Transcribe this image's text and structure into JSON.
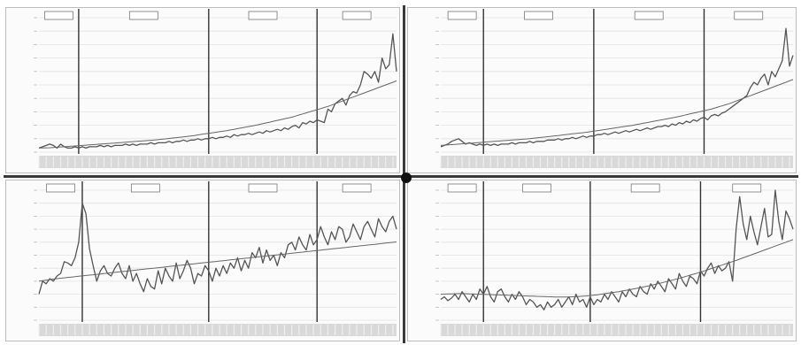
{
  "colors": {
    "frame": "#3a3a3a",
    "line": "#555555",
    "trend": "#666666",
    "grid": "#e2e2e2",
    "axis_band": "#d9d9d9"
  },
  "chart_data": [
    {
      "type": "line",
      "title": "",
      "xlabel": "",
      "ylabel": "",
      "x": [
        0,
        1,
        2,
        3,
        4,
        5,
        6,
        7,
        8,
        9,
        10,
        11,
        12,
        13,
        14,
        15,
        16,
        17,
        18,
        19,
        20,
        21,
        22,
        23,
        24,
        25,
        26,
        27,
        28,
        29,
        30,
        31,
        32,
        33,
        34,
        35,
        36,
        37,
        38,
        39,
        40,
        41,
        42,
        43,
        44,
        45,
        46,
        47,
        48,
        49,
        50,
        51,
        52,
        53,
        54,
        55,
        56,
        57,
        58,
        59,
        60,
        61,
        62,
        63,
        64,
        65,
        66,
        67,
        68,
        69,
        70,
        71,
        72,
        73,
        74,
        75,
        76,
        77,
        78,
        79,
        80,
        81,
        82,
        83,
        84,
        85,
        86,
        87,
        88,
        89,
        90,
        91,
        92,
        93,
        94,
        95,
        96,
        97,
        98,
        99
      ],
      "series": [
        {
          "values": [
            3,
            4,
            5,
            6,
            5,
            3,
            6,
            4,
            3,
            3,
            4,
            3,
            4,
            3,
            4,
            4,
            4,
            5,
            4,
            5,
            4,
            5,
            5,
            5,
            6,
            5,
            6,
            5,
            6,
            6,
            6,
            7,
            6,
            7,
            7,
            7,
            8,
            7,
            8,
            8,
            9,
            8,
            9,
            9,
            10,
            9,
            10,
            10,
            11,
            10,
            11,
            11,
            12,
            11,
            13,
            12,
            13,
            13,
            14,
            13,
            14,
            15,
            14,
            16,
            15,
            16,
            17,
            16,
            18,
            17,
            19,
            20,
            18,
            22,
            21,
            23,
            22,
            24,
            23,
            22,
            32,
            30,
            36,
            38,
            40,
            35,
            42,
            45,
            44,
            50,
            60,
            58,
            55,
            60,
            52,
            70,
            62,
            65,
            88,
            60
          ]
        },
        {
          "values": [
            3,
            3.1,
            3.2,
            3.3,
            3.5,
            3.7,
            3.9,
            4,
            4.2,
            4.4,
            4.6,
            4.8,
            5,
            5.2,
            5.4,
            5.6,
            5.8,
            6,
            6.2,
            6.4,
            6.6,
            6.8,
            7,
            7.2,
            7.4,
            7.6,
            7.8,
            8,
            8.2,
            8.4,
            8.6,
            8.8,
            9,
            9.3,
            9.6,
            9.9,
            10.2,
            10.5,
            10.8,
            11.1,
            11.4,
            11.7,
            12,
            12.4,
            12.8,
            13.2,
            13.6,
            14,
            14.4,
            14.8,
            15.2,
            15.6,
            16,
            16.5,
            17,
            17.5,
            18,
            18.5,
            19,
            19.5,
            20,
            20.6,
            21.2,
            21.8,
            22.4,
            23,
            23.6,
            24.2,
            24.8,
            25.4,
            26,
            26.8,
            27.6,
            28.4,
            29.2,
            30,
            30.8,
            31.6,
            32.4,
            33.2,
            34,
            35,
            36,
            37,
            38,
            39,
            40,
            41,
            42,
            43,
            44,
            45,
            46,
            47,
            48,
            49,
            50,
            51,
            52,
            53
          ]
        }
      ],
      "ylim": [
        0,
        100
      ],
      "vlines": [
        11,
        47,
        77
      ],
      "grid": true,
      "era_labels": [
        "",
        "",
        "",
        ""
      ]
    },
    {
      "type": "line",
      "title": "",
      "xlabel": "",
      "ylabel": "",
      "x": [
        0,
        1,
        2,
        3,
        4,
        5,
        6,
        7,
        8,
        9,
        10,
        11,
        12,
        13,
        14,
        15,
        16,
        17,
        18,
        19,
        20,
        21,
        22,
        23,
        24,
        25,
        26,
        27,
        28,
        29,
        30,
        31,
        32,
        33,
        34,
        35,
        36,
        37,
        38,
        39,
        40,
        41,
        42,
        43,
        44,
        45,
        46,
        47,
        48,
        49,
        50,
        51,
        52,
        53,
        54,
        55,
        56,
        57,
        58,
        59,
        60,
        61,
        62,
        63,
        64,
        65,
        66,
        67,
        68,
        69,
        70,
        71,
        72,
        73,
        74,
        75,
        76,
        77,
        78,
        79,
        80,
        81,
        82,
        83,
        84,
        85,
        86,
        87,
        88,
        89,
        90,
        91,
        92,
        93,
        94,
        95,
        96,
        97,
        98,
        99
      ],
      "series": [
        {
          "values": [
            4,
            5,
            6,
            8,
            9,
            10,
            8,
            6,
            7,
            6,
            5,
            6,
            5,
            6,
            5,
            6,
            5,
            6,
            6,
            6,
            7,
            6,
            7,
            7,
            7,
            8,
            7,
            8,
            8,
            8,
            9,
            9,
            9,
            10,
            9,
            10,
            10,
            11,
            10,
            11,
            12,
            11,
            12,
            12,
            13,
            13,
            14,
            13,
            14,
            15,
            14,
            15,
            16,
            15,
            16,
            17,
            16,
            17,
            18,
            17,
            18,
            19,
            19,
            20,
            19,
            21,
            20,
            22,
            21,
            23,
            22,
            24,
            23,
            25,
            26,
            24,
            27,
            28,
            27,
            29,
            30,
            32,
            34,
            36,
            38,
            40,
            42,
            48,
            52,
            50,
            55,
            58,
            50,
            60,
            56,
            62,
            68,
            92,
            64,
            72
          ]
        },
        {
          "values": [
            5,
            5.2,
            5.4,
            5.6,
            5.8,
            6,
            6.2,
            6.4,
            6.6,
            6.8,
            7,
            7.2,
            7.4,
            7.6,
            7.8,
            8,
            8.2,
            8.4,
            8.6,
            8.8,
            9,
            9.2,
            9.4,
            9.6,
            9.8,
            10,
            10.3,
            10.6,
            10.9,
            11.2,
            11.5,
            11.8,
            12.1,
            12.4,
            12.7,
            13,
            13.3,
            13.6,
            13.9,
            14.2,
            14.5,
            14.8,
            15.2,
            15.6,
            16,
            16.4,
            16.8,
            17.2,
            17.6,
            18,
            18.4,
            18.8,
            19.2,
            19.6,
            20,
            20.5,
            21,
            21.5,
            22,
            22.5,
            23,
            23.5,
            24,
            24.5,
            25,
            25.5,
            26,
            26.6,
            27.2,
            27.8,
            28.4,
            29,
            29.6,
            30.2,
            30.8,
            31.4,
            32,
            32.8,
            33.6,
            34.4,
            35.2,
            36,
            37,
            38,
            39,
            40,
            41,
            42,
            43,
            44,
            45,
            46,
            47,
            48,
            49,
            50,
            51,
            52,
            53,
            54
          ]
        }
      ],
      "ylim": [
        0,
        100
      ],
      "vlines": [
        12,
        43,
        74
      ],
      "grid": true,
      "era_labels": [
        "",
        "",
        "",
        ""
      ]
    },
    {
      "type": "line",
      "title": "",
      "xlabel": "",
      "ylabel": "",
      "x": [
        0,
        1,
        2,
        3,
        4,
        5,
        6,
        7,
        8,
        9,
        10,
        11,
        12,
        13,
        14,
        15,
        16,
        17,
        18,
        19,
        20,
        21,
        22,
        23,
        24,
        25,
        26,
        27,
        28,
        29,
        30,
        31,
        32,
        33,
        34,
        35,
        36,
        37,
        38,
        39,
        40,
        41,
        42,
        43,
        44,
        45,
        46,
        47,
        48,
        49,
        50,
        51,
        52,
        53,
        54,
        55,
        56,
        57,
        58,
        59,
        60,
        61,
        62,
        63,
        64,
        65,
        66,
        67,
        68,
        69,
        70,
        71,
        72,
        73,
        74,
        75,
        76,
        77,
        78,
        79,
        80,
        81,
        82,
        83,
        84,
        85,
        86,
        87,
        88,
        89,
        90,
        91,
        92,
        93,
        94,
        95,
        96,
        97,
        98,
        99
      ],
      "series": [
        {
          "values": [
            20,
            30,
            28,
            32,
            30,
            34,
            36,
            45,
            44,
            42,
            48,
            60,
            90,
            82,
            55,
            42,
            30,
            38,
            42,
            36,
            34,
            40,
            44,
            36,
            32,
            42,
            30,
            36,
            28,
            22,
            32,
            26,
            24,
            38,
            28,
            40,
            34,
            30,
            44,
            32,
            38,
            46,
            40,
            28,
            36,
            34,
            42,
            38,
            30,
            40,
            34,
            42,
            36,
            44,
            40,
            48,
            38,
            46,
            40,
            52,
            48,
            56,
            44,
            54,
            46,
            50,
            42,
            52,
            48,
            58,
            60,
            54,
            64,
            58,
            54,
            66,
            58,
            62,
            72,
            64,
            58,
            68,
            62,
            72,
            70,
            60,
            64,
            74,
            68,
            62,
            72,
            76,
            70,
            64,
            78,
            72,
            68,
            76,
            80,
            70
          ]
        },
        {
          "values": [
            30,
            30.4,
            30.8,
            31.2,
            31.6,
            32,
            32.3,
            32.6,
            32.9,
            33.2,
            33.5,
            33.8,
            34.1,
            34.4,
            34.7,
            35,
            35.3,
            35.6,
            35.9,
            36.2,
            36.5,
            36.8,
            37.1,
            37.4,
            37.7,
            38,
            38.3,
            38.6,
            38.9,
            39.2,
            39.5,
            39.8,
            40.1,
            40.4,
            40.7,
            41,
            41.3,
            41.6,
            41.9,
            42.2,
            42.5,
            42.8,
            43.1,
            43.4,
            43.7,
            44,
            44.3,
            44.6,
            44.9,
            45.2,
            45.5,
            45.8,
            46.1,
            46.4,
            46.7,
            47,
            47.3,
            47.6,
            47.9,
            48.2,
            48.5,
            48.8,
            49.1,
            49.4,
            49.7,
            50,
            50.3,
            50.6,
            50.9,
            51.2,
            51.5,
            51.8,
            52.1,
            52.4,
            52.7,
            53,
            53.3,
            53.6,
            53.9,
            54.2,
            54.5,
            54.8,
            55.1,
            55.4,
            55.7,
            56,
            56.3,
            56.6,
            56.9,
            57.2,
            57.5,
            57.8,
            58.1,
            58.4,
            58.7,
            59,
            59.3,
            59.6,
            59.9,
            60.2
          ]
        }
      ],
      "ylim": [
        0,
        100
      ],
      "vlines": [
        12,
        47,
        77
      ],
      "grid": true,
      "era_labels": [
        "",
        "",
        "",
        ""
      ]
    },
    {
      "type": "line",
      "title": "",
      "xlabel": "",
      "ylabel": "",
      "x": [
        0,
        1,
        2,
        3,
        4,
        5,
        6,
        7,
        8,
        9,
        10,
        11,
        12,
        13,
        14,
        15,
        16,
        17,
        18,
        19,
        20,
        21,
        22,
        23,
        24,
        25,
        26,
        27,
        28,
        29,
        30,
        31,
        32,
        33,
        34,
        35,
        36,
        37,
        38,
        39,
        40,
        41,
        42,
        43,
        44,
        45,
        46,
        47,
        48,
        49,
        50,
        51,
        52,
        53,
        54,
        55,
        56,
        57,
        58,
        59,
        60,
        61,
        62,
        63,
        64,
        65,
        66,
        67,
        68,
        69,
        70,
        71,
        72,
        73,
        74,
        75,
        76,
        77,
        78,
        79,
        80,
        81,
        82,
        83,
        84,
        85,
        86,
        87,
        88,
        89,
        90,
        91,
        92,
        93,
        94,
        95,
        96,
        97,
        98,
        99
      ],
      "series": [
        {
          "values": [
            16,
            18,
            15,
            17,
            20,
            16,
            22,
            18,
            14,
            20,
            16,
            24,
            20,
            26,
            18,
            14,
            22,
            24,
            18,
            14,
            20,
            16,
            22,
            18,
            12,
            16,
            14,
            10,
            12,
            8,
            14,
            10,
            12,
            16,
            10,
            14,
            18,
            12,
            20,
            14,
            16,
            10,
            18,
            12,
            16,
            14,
            20,
            16,
            22,
            18,
            14,
            22,
            18,
            24,
            20,
            18,
            26,
            22,
            20,
            28,
            24,
            30,
            26,
            22,
            32,
            28,
            24,
            36,
            30,
            26,
            34,
            32,
            28,
            38,
            34,
            40,
            44,
            36,
            42,
            38,
            40,
            45,
            30,
            70,
            95,
            74,
            62,
            80,
            68,
            58,
            72,
            86,
            64,
            66,
            100,
            76,
            62,
            84,
            78,
            70
          ]
        },
        {
          "values": [
            20,
            20.1,
            20.2,
            20.3,
            20.4,
            20.5,
            20.5,
            20.4,
            20.3,
            20.2,
            20.1,
            20,
            19.9,
            19.8,
            19.7,
            19.6,
            19.5,
            19.4,
            19.3,
            19.2,
            19.1,
            19,
            18.9,
            18.8,
            18.7,
            18.6,
            18.5,
            18.4,
            18.3,
            18.2,
            18.1,
            18,
            17.9,
            17.8,
            17.8,
            17.8,
            17.9,
            18,
            18.1,
            18.3,
            18.5,
            18.7,
            19,
            19.3,
            19.6,
            20,
            20.4,
            20.8,
            21.2,
            21.6,
            22,
            22.5,
            23,
            23.5,
            24,
            24.5,
            25,
            25.6,
            26.2,
            26.8,
            27.4,
            28,
            28.7,
            29.4,
            30.1,
            30.8,
            31.5,
            32.2,
            33,
            33.8,
            34.6,
            35.4,
            36.2,
            37,
            37.9,
            38.8,
            39.7,
            40.6,
            41.5,
            42.4,
            43.3,
            44.2,
            45.1,
            46,
            47,
            48,
            49,
            50,
            51,
            52,
            53,
            54,
            55,
            56,
            57,
            58,
            59,
            60,
            61,
            62
          ]
        }
      ],
      "ylim": [
        0,
        100
      ],
      "vlines": [
        12,
        42,
        73
      ],
      "grid": true,
      "era_labels": [
        "",
        "",
        "",
        ""
      ]
    }
  ]
}
